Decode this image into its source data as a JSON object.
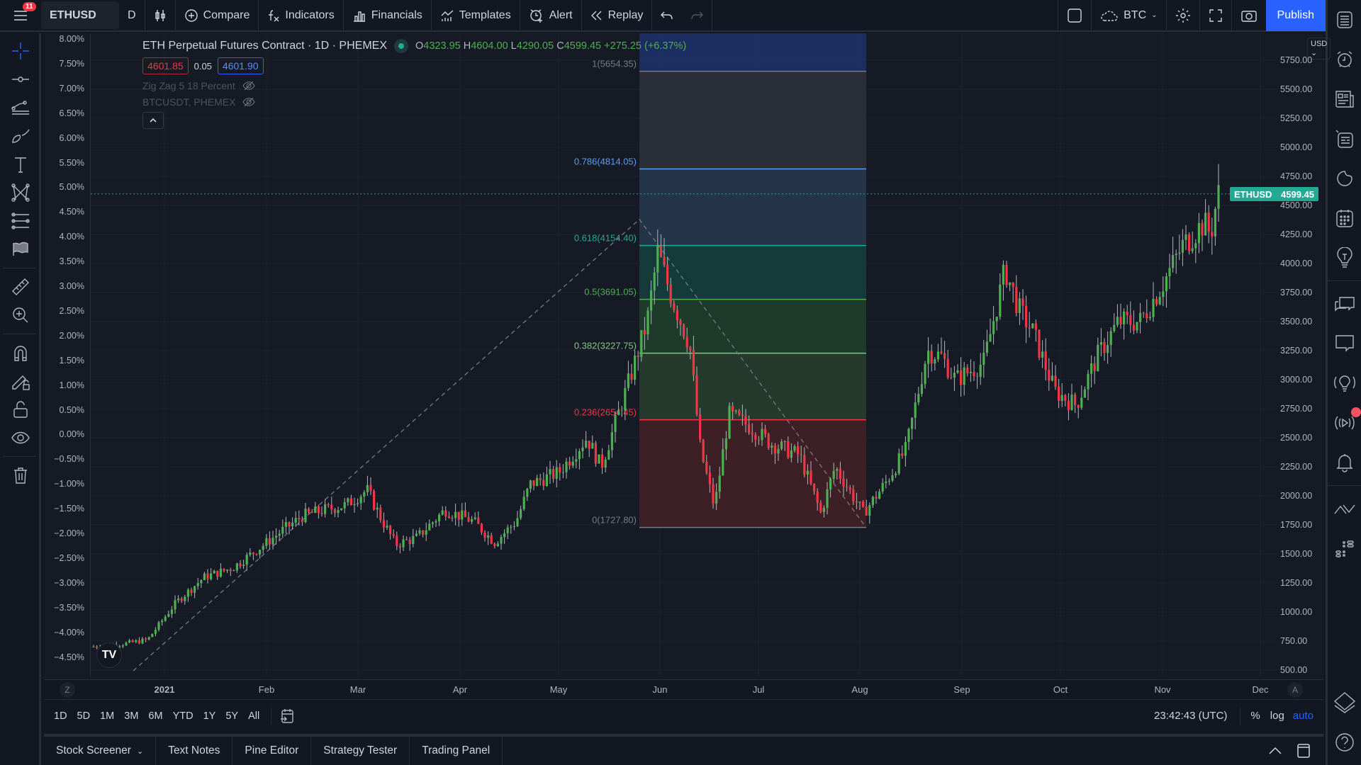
{
  "header": {
    "notification_count": "11",
    "symbol": "ETHUSD",
    "interval": "D",
    "compare": "Compare",
    "indicators": "Indicators",
    "financials": "Financials",
    "templates": "Templates",
    "alert": "Alert",
    "replay": "Replay",
    "layout_symbol": "BTC",
    "publish": "Publish"
  },
  "legend": {
    "title": "ETH Perpetual Futures Contract · 1D · PHEMEX",
    "o_label": "O",
    "o": "4323.95",
    "h_label": "H",
    "h": "4604.00",
    "l_label": "L",
    "l": "4290.05",
    "c_label": "C",
    "c": "4599.45",
    "change": "+275.25 (+6.37%)",
    "bid": "4601.85",
    "spread": "0.05",
    "ask": "4601.90",
    "indicator1": "Zig Zag 5 18 Percent",
    "indicator2": "BTCUSDT, PHEMEX"
  },
  "fib_levels": [
    {
      "label": "1(5654.35)",
      "color": "#787b86"
    },
    {
      "label": "0.786(4814.05)",
      "color": "#5b9cf6"
    },
    {
      "label": "0.618(4154.40)",
      "color": "#22ab94"
    },
    {
      "label": "0.5(3691.05)",
      "color": "#4caf50"
    },
    {
      "label": "0.382(3227.75)",
      "color": "#81c784"
    },
    {
      "label": "0.236(2654.45)",
      "color": "#f23645"
    },
    {
      "label": "0(1727.80)",
      "color": "#787b86"
    }
  ],
  "pct_axis": [
    "8.00%",
    "7.50%",
    "7.00%",
    "6.50%",
    "6.00%",
    "5.50%",
    "5.00%",
    "4.50%",
    "4.00%",
    "3.50%",
    "3.00%",
    "2.50%",
    "2.00%",
    "1.50%",
    "1.00%",
    "0.50%",
    "0.00%",
    "−0.50%",
    "−1.00%",
    "−1.50%",
    "−2.00%",
    "−2.50%",
    "−3.00%",
    "−3.50%",
    "−4.00%",
    "−4.50%"
  ],
  "price_axis": {
    "currency": "USD",
    "ticks": [
      "5750.00",
      "5500.00",
      "5250.00",
      "5000.00",
      "4750.00",
      "4500.00",
      "4250.00",
      "4000.00",
      "3750.00",
      "3500.00",
      "3250.00",
      "3000.00",
      "2750.00",
      "2500.00",
      "2250.00",
      "2000.00",
      "1750.00",
      "1500.00",
      "1250.00",
      "1000.00",
      "750.00",
      "500.00"
    ],
    "last_label": "ETHUSD",
    "last_price": "4599.45"
  },
  "time_axis": {
    "left_btn": "Z",
    "right_btn": "A",
    "labels": [
      "2021",
      "Feb",
      "Mar",
      "Apr",
      "May",
      "Jun",
      "Jul",
      "Aug",
      "Sep",
      "Oct",
      "Nov",
      "Dec"
    ]
  },
  "bottom": {
    "ranges": [
      "1D",
      "5D",
      "1M",
      "3M",
      "6M",
      "YTD",
      "1Y",
      "5Y",
      "All"
    ],
    "clock": "23:42:43 (UTC)",
    "pct": "%",
    "log": "log",
    "auto": "auto"
  },
  "panels": [
    "Stock Screener",
    "Text Notes",
    "Pine Editor",
    "Strategy Tester",
    "Trading Panel"
  ],
  "colors": {
    "up": "#26a69a",
    "down": "#f23645",
    "accent": "#2962ff",
    "last": "#22ab94"
  }
}
